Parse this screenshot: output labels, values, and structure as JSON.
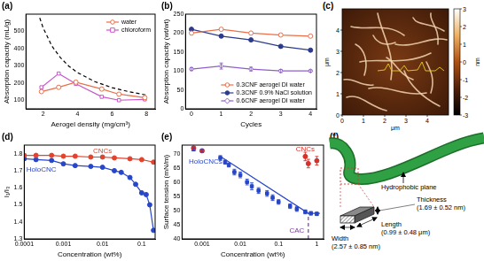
{
  "chart_data": [
    {
      "type": "line",
      "title": "(a)",
      "x_label": "Aerogel density (mg/cm³)",
      "y_label": "Absorption capacity (mL/g)",
      "xlim": [
        1,
        8.5
      ],
      "xticks": [
        2,
        4,
        6,
        8
      ],
      "ylim": [
        50,
        600
      ],
      "yticks": [
        100,
        200,
        300,
        400,
        500
      ],
      "grid": false,
      "legend": "upper right",
      "series": [
        {
          "name": "water",
          "color": "#e8704a",
          "marker": "circle-open",
          "x": [
            1.9,
            2.9,
            3.9,
            5.4,
            6.4,
            7.9
          ],
          "values": [
            150,
            175,
            205,
            165,
            135,
            115
          ]
        },
        {
          "name": "chloroform",
          "color": "#c658c8",
          "marker": "square-open",
          "x": [
            1.9,
            2.9,
            3.9,
            5.4,
            6.4,
            7.9
          ],
          "values": [
            175,
            255,
            195,
            120,
            100,
            105
          ]
        },
        {
          "color": "#000000",
          "marker": "none",
          "line_style": "dashed",
          "x": [
            1.8,
            2,
            2.5,
            3,
            3.5,
            4,
            5,
            6,
            7,
            8
          ],
          "values": [
            578,
            520,
            416,
            347,
            297,
            260,
            208,
            173,
            149,
            130
          ]
        }
      ]
    },
    {
      "type": "line",
      "title": "(b)",
      "x_label": "Cycles",
      "y_label": "Absorption capacity (wt/wt)",
      "x": [
        0,
        1,
        2,
        3,
        4
      ],
      "xlim": [
        -0.2,
        4.2
      ],
      "xticks": [
        0,
        1,
        2,
        3,
        4
      ],
      "ylim": [
        0,
        250
      ],
      "yticks": [
        0,
        50,
        100,
        150,
        200,
        250
      ],
      "grid": false,
      "legend": "lower right",
      "series": [
        {
          "name": "0.3CNF aerogel DI water",
          "color": "#e8704a",
          "marker": "circle-open",
          "values": [
            200,
            210,
            200,
            195,
            192
          ]
        },
        {
          "name": "0.3CNF 0.9% NaCl solution",
          "color": "#2b3a8c",
          "marker": "circle",
          "values": [
            210,
            192,
            182,
            165,
            155
          ]
        },
        {
          "name": "0.6CNF aerogel DI water",
          "color": "#8e5fc8",
          "marker": "diamond-open",
          "values": [
            105,
            113,
            105,
            100,
            100
          ],
          "errors": [
            4,
            8,
            5,
            4,
            3
          ]
        }
      ]
    },
    {
      "type": "line",
      "title": "(d)",
      "x_label": "Concentration (wt%)",
      "y_label": "I₁/I₃",
      "log": "x",
      "xlim": [
        0.0001,
        0.22
      ],
      "xticks": [
        0.0001,
        0.001,
        0.01,
        0.1
      ],
      "ylim": [
        1.3,
        1.85
      ],
      "yticks": [
        1.3,
        1.4,
        1.5,
        1.6,
        1.7,
        1.8
      ],
      "grid": false,
      "series": [
        {
          "name": "CNCs",
          "color": "#e2432f",
          "marker": "circle",
          "x": [
            0.0001,
            0.0002,
            0.0005,
            0.001,
            0.002,
            0.005,
            0.01,
            0.02,
            0.05,
            0.1,
            0.2
          ],
          "values": [
            1.79,
            1.79,
            1.79,
            1.785,
            1.785,
            1.78,
            1.78,
            1.775,
            1.77,
            1.765,
            1.75
          ]
        },
        {
          "name": "HoloCNC",
          "color": "#2846c9",
          "marker": "circle",
          "x": [
            0.0001,
            0.0002,
            0.0005,
            0.001,
            0.002,
            0.005,
            0.01,
            0.02,
            0.03,
            0.05,
            0.07,
            0.1,
            0.13,
            0.16,
            0.2
          ],
          "values": [
            1.77,
            1.765,
            1.76,
            1.74,
            1.73,
            1.725,
            1.72,
            1.7,
            1.69,
            1.66,
            1.62,
            1.57,
            1.56,
            1.5,
            1.35
          ]
        }
      ]
    },
    {
      "type": "scatter",
      "title": "(e)",
      "x_label": "Concentration (wt%)",
      "y_label": "Surface tension (mN/m)",
      "log": "x",
      "xlim": [
        0.0003,
        1.5
      ],
      "xticks": [
        0.001,
        0.01,
        0.1,
        1
      ],
      "ylim": [
        40,
        73
      ],
      "yticks": [
        40,
        45,
        50,
        55,
        60,
        65,
        70
      ],
      "grid": false,
      "series": [
        {
          "name": "CNCs",
          "color": "#d8302a",
          "marker": "circle",
          "x": [
            0.0006,
            0.001,
            0.5,
            0.6,
            1.0
          ],
          "values": [
            72,
            71,
            69,
            66.5,
            67.5
          ],
          "errors": [
            0.5,
            0.5,
            1.5,
            1.5,
            1.5
          ]
        },
        {
          "name": "HoloCNCs",
          "color": "#2846c9",
          "marker": "square",
          "x": [
            0.0006,
            0.001,
            0.003,
            0.004,
            0.005,
            0.007,
            0.01,
            0.015,
            0.02,
            0.03,
            0.05,
            0.07,
            0.1,
            0.2,
            0.3,
            0.5,
            0.7,
            1.0
          ],
          "values": [
            71.5,
            71,
            68.5,
            67,
            66,
            63.5,
            62.5,
            60,
            58.5,
            57,
            56,
            54.5,
            53,
            51.5,
            50.5,
            49.5,
            49,
            48.8
          ],
          "errors": [
            0.5,
            0.5,
            0.8,
            0.7,
            0.7,
            1,
            1,
            1,
            1.2,
            1,
            1,
            1,
            0.8,
            0.8,
            0.8,
            0.7,
            0.6,
            0.6
          ]
        },
        {
          "type": "line",
          "color": "#2846c9",
          "marker": "none",
          "x": [
            0.003,
            0.6,
            1.2
          ],
          "values": [
            69,
            49,
            49
          ]
        },
        {
          "name": "CAC",
          "type": "line",
          "color": "#7a3aa0",
          "marker": "none",
          "line_style": "dashed",
          "x": [
            0.6,
            0.6
          ],
          "values": [
            40,
            49
          ]
        }
      ]
    }
  ],
  "afm_image": {
    "title": "(c)",
    "x_label": "μm",
    "y_label": "μm",
    "xlim": [
      0,
      5
    ],
    "ylim": [
      0,
      5
    ],
    "xticks": [
      0,
      1,
      2,
      3,
      4
    ],
    "yticks": [
      0,
      1,
      2,
      3,
      4
    ],
    "colorbar": {
      "label": "nm",
      "range": [
        -3,
        3
      ],
      "ticks": [
        -3,
        -2,
        -1,
        0,
        1,
        2,
        3
      ]
    }
  },
  "diagram": {
    "title": "(f)",
    "hydrophobic_plane": "Hydrophobic plane",
    "dimensions": [
      {
        "name": "Thickness",
        "value": "(1.69 ± 0.52 nm)"
      },
      {
        "name": "Length",
        "value": "(0.99 ± 0.48 μm)"
      },
      {
        "name": "Width",
        "value": "(2.57 ± 0.85 nm)"
      }
    ]
  }
}
